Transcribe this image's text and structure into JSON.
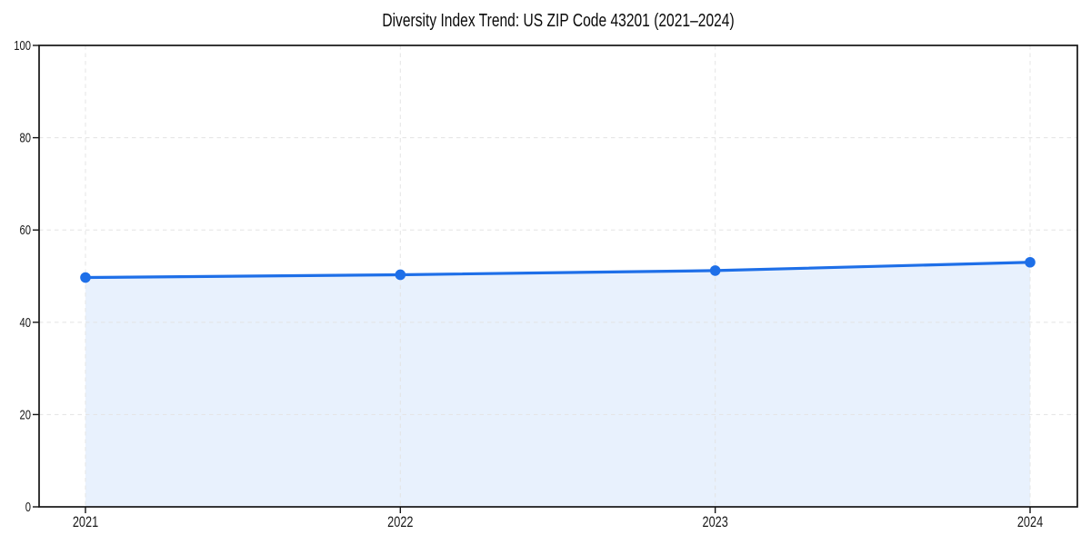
{
  "chart_data": {
    "type": "area",
    "title": "Diversity Index Trend: US ZIP Code 43201 (2021–2024)",
    "categories": [
      "2021",
      "2022",
      "2023",
      "2024"
    ],
    "values": [
      49.7,
      50.3,
      51.2,
      53.0
    ],
    "series": [
      {
        "name": "Diversity Index",
        "values": [
          49.7,
          50.3,
          51.2,
          53.0
        ]
      }
    ],
    "xlabel": "",
    "ylabel": "",
    "ylim": [
      0,
      100
    ],
    "y_ticks": [
      0,
      20,
      40,
      60,
      80,
      100
    ],
    "grid": "dashed",
    "legend": "none",
    "markers": true,
    "colors": {
      "line": "#1e6fe8",
      "marker": "#1e6fe8",
      "fill": "#e8f1fd",
      "grid": "#e4e4e4",
      "axis": "#141414",
      "tick_label": "#1a1a1a",
      "title": "#0a0a0a",
      "background": "#ffffff"
    }
  }
}
